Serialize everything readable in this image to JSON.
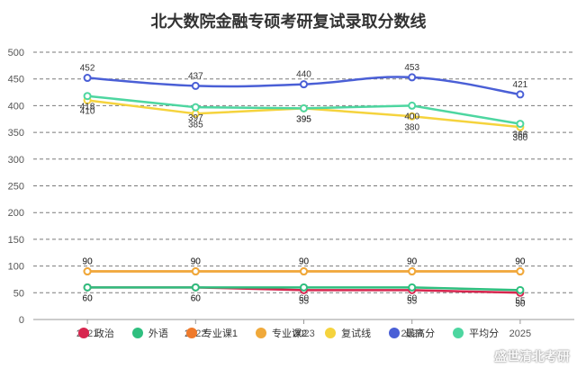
{
  "chart_data": {
    "type": "line",
    "title": "北大数院金融专硕考研复试录取分数线",
    "categories": [
      "2021",
      "2022",
      "2023",
      "2024",
      "2025"
    ],
    "ylim": [
      0,
      500
    ],
    "yticks": [
      0,
      50,
      100,
      150,
      200,
      250,
      300,
      350,
      400,
      450,
      500
    ],
    "grid": true,
    "legend_position": "bottom",
    "series": [
      {
        "name": "政治",
        "color": "#d7264f",
        "values": [
          60,
          60,
          55,
          55,
          50
        ],
        "smooth": false
      },
      {
        "name": "外语",
        "color": "#2fbf7f",
        "values": [
          60,
          60,
          60,
          60,
          55
        ],
        "smooth": false
      },
      {
        "name": "专业课1",
        "color": "#ef7a2b",
        "values": [
          90,
          90,
          90,
          90,
          90
        ],
        "smooth": false
      },
      {
        "name": "专业课2",
        "color": "#f0a93a",
        "values": [
          90,
          90,
          90,
          90,
          90
        ],
        "smooth": false
      },
      {
        "name": "复试线",
        "color": "#f5d33d",
        "values": [
          410,
          385,
          395,
          380,
          360
        ],
        "smooth": false
      },
      {
        "name": "最高分",
        "color": "#4a5fd6",
        "values": [
          452,
          437,
          440,
          453,
          421
        ],
        "smooth": true
      },
      {
        "name": "平均分",
        "color": "#4dd6a0",
        "values": [
          418,
          397,
          395,
          400,
          366
        ],
        "smooth": false
      }
    ]
  },
  "watermark": "盛世清北考研"
}
